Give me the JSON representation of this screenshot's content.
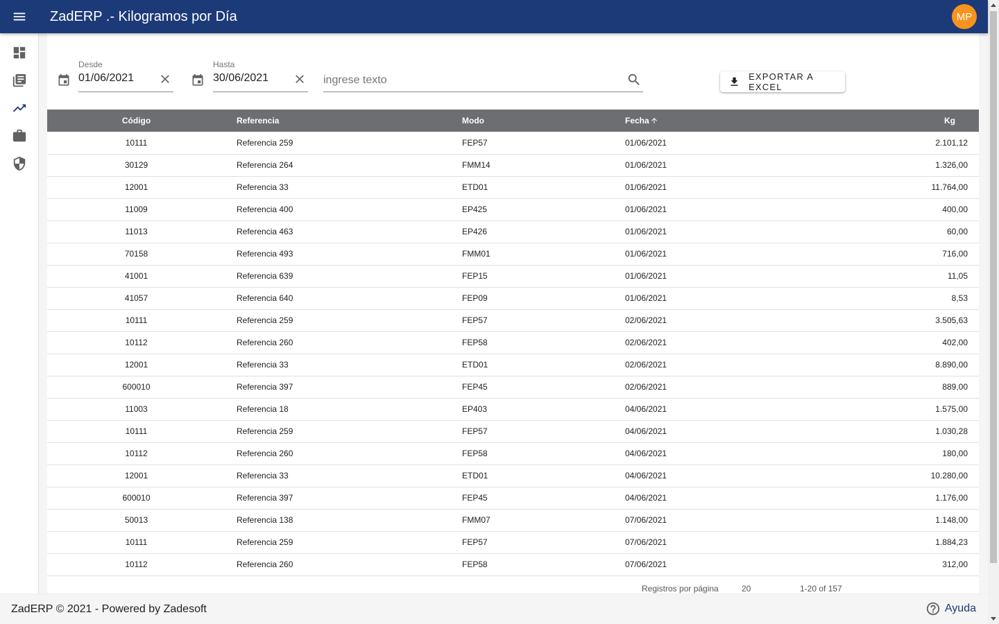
{
  "app": {
    "title": "ZadERP .- Kilogramos por Día",
    "avatar": "MP"
  },
  "icons": {
    "menu": "menu-icon",
    "sidebar": [
      "dashboard-icon",
      "library-books-icon",
      "trending-up-icon",
      "briefcase-icon",
      "shield-icon"
    ],
    "calendar": "calendar-icon",
    "clear": "close-icon",
    "search": "search-icon",
    "export": "download-icon",
    "sort": "arrow-upward-icon",
    "help": "help-icon"
  },
  "colors": {
    "header": "#1c3a78",
    "avatar": "#f7941d",
    "table_header": "#6d6e71"
  },
  "filters": {
    "desde_label": "Desde",
    "desde_value": "01/06/2021",
    "hasta_label": "Hasta",
    "hasta_value": "30/06/2021",
    "search_placeholder": "ingrese texto",
    "export_label": "EXPORTAR A EXCEL"
  },
  "table": {
    "columns": [
      "Código",
      "Referencia",
      "Modo",
      "Fecha",
      "Kg"
    ],
    "sorted_by": "Fecha",
    "sort_direction": "asc",
    "rows": [
      [
        "10111",
        "Referencia 259",
        "FEP57",
        "01/06/2021",
        "2.101,12"
      ],
      [
        "30129",
        "Referencia 264",
        "FMM14",
        "01/06/2021",
        "1.326,00"
      ],
      [
        "12001",
        "Referencia 33",
        "ETD01",
        "01/06/2021",
        "11.764,00"
      ],
      [
        "11009",
        "Referencia 400",
        "EP425",
        "01/06/2021",
        "400,00"
      ],
      [
        "11013",
        "Referencia 463",
        "EP426",
        "01/06/2021",
        "60,00"
      ],
      [
        "70158",
        "Referencia 493",
        "FMM01",
        "01/06/2021",
        "716,00"
      ],
      [
        "41001",
        "Referencia 639",
        "FEP15",
        "01/06/2021",
        "11,05"
      ],
      [
        "41057",
        "Referencia 640",
        "FEP09",
        "01/06/2021",
        "8,53"
      ],
      [
        "10111",
        "Referencia 259",
        "FEP57",
        "02/06/2021",
        "3.505,63"
      ],
      [
        "10112",
        "Referencia 260",
        "FEP58",
        "02/06/2021",
        "402,00"
      ],
      [
        "12001",
        "Referencia 33",
        "ETD01",
        "02/06/2021",
        "8.890,00"
      ],
      [
        "600010",
        "Referencia 397",
        "FEP45",
        "02/06/2021",
        "889,00"
      ],
      [
        "11003",
        "Referencia 18",
        "EP403",
        "04/06/2021",
        "1.575,00"
      ],
      [
        "10111",
        "Referencia 259",
        "FEP57",
        "04/06/2021",
        "1.030,28"
      ],
      [
        "10112",
        "Referencia 260",
        "FEP58",
        "04/06/2021",
        "180,00"
      ],
      [
        "12001",
        "Referencia 33",
        "ETD01",
        "04/06/2021",
        "10.280,00"
      ],
      [
        "600010",
        "Referencia 397",
        "FEP45",
        "04/06/2021",
        "1.176,00"
      ],
      [
        "50013",
        "Referencia 138",
        "FMM07",
        "07/06/2021",
        "1.148,00"
      ],
      [
        "10111",
        "Referencia 259",
        "FEP57",
        "07/06/2021",
        "1.884,23"
      ],
      [
        "10112",
        "Referencia 260",
        "FEP58",
        "07/06/2021",
        "312,00"
      ]
    ]
  },
  "paginator": {
    "label": "Registros por página",
    "page_size": "20",
    "range": "1-20 of 157"
  },
  "footer": {
    "text": "ZadERP © 2021 - Powered by Zadesoft",
    "help_label": "Ayuda"
  }
}
